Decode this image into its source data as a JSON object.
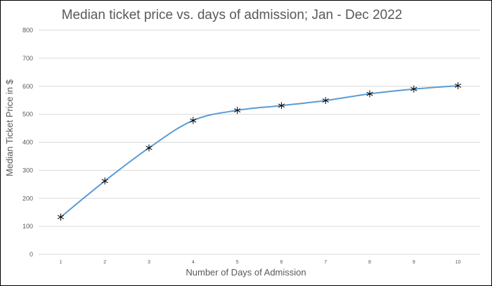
{
  "chart_data": {
    "type": "line",
    "title": "Median ticket price vs. days of admission; Jan - Dec 2022",
    "xlabel": "Number of Days of Admission",
    "ylabel": "Median Ticket Price in $",
    "categories": [
      "1",
      "2",
      "3",
      "4",
      "5",
      "6",
      "7",
      "8",
      "9",
      "10"
    ],
    "values": [
      133,
      262,
      380,
      478,
      514,
      531,
      549,
      573,
      590,
      602
    ],
    "ylim": [
      0,
      800
    ],
    "yticks": [
      "0",
      "100",
      "200",
      "300",
      "400",
      "500",
      "600",
      "700",
      "800"
    ],
    "grid": true,
    "legend": "none",
    "marker": "asterisk",
    "line_color": "#5b9bd5",
    "marker_color": "#000000",
    "grid_color": "#d9d9d9"
  }
}
